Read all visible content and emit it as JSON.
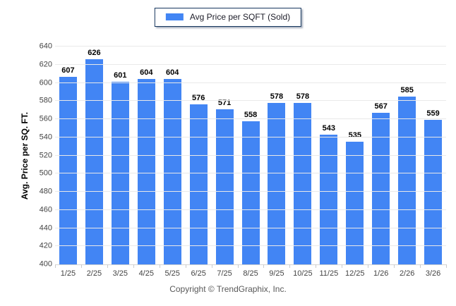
{
  "legend": {
    "label": "Avg Price per SQFT (Sold)",
    "swatch_color": "#4285f4"
  },
  "footer": {
    "copyright": "Copyright © TrendGraphix, Inc."
  },
  "chart_data": {
    "type": "bar",
    "title": "",
    "categories": [
      "1/25",
      "2/25",
      "3/25",
      "4/25",
      "5/25",
      "6/25",
      "7/25",
      "8/25",
      "9/25",
      "10/25",
      "11/25",
      "12/25",
      "1/26",
      "2/26",
      "3/26"
    ],
    "series": [
      {
        "name": "Avg Price per SQFT (Sold)",
        "values": [
          607,
          626,
          601,
          604,
          604,
          576,
          571,
          558,
          578,
          578,
          543,
          535,
          567,
          585,
          559
        ]
      }
    ],
    "xlabel": "",
    "ylabel": "Avg. Price per SQ. FT.",
    "ylim": [
      400,
      640
    ],
    "ytick_step": 20,
    "bar_color": "#4285f4",
    "grid": true,
    "legend_position": "top-center",
    "data_labels": true
  }
}
